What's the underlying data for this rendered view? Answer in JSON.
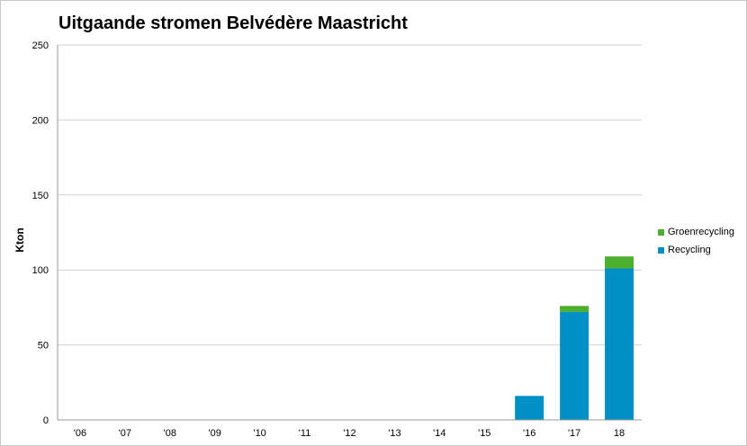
{
  "chart_data": {
    "type": "bar",
    "stacked": true,
    "title": "Uitgaande stromen Belvédère Maastricht",
    "ylabel": "Kton",
    "xlabel": "",
    "ylim": [
      0,
      250
    ],
    "yticks": [
      0,
      50,
      100,
      150,
      200,
      250
    ],
    "grid": true,
    "legend_position": "right",
    "categories": [
      "'06",
      "'07",
      "'08",
      "'09",
      "'10",
      "'11",
      "'12",
      "'13",
      "'14",
      "'15",
      "'16",
      "'17",
      "18"
    ],
    "series": [
      {
        "name": "Recycling",
        "color": "#0090c6",
        "values": [
          0,
          0,
          0,
          0,
          0,
          0,
          0,
          0,
          0,
          0,
          16,
          72,
          101
        ]
      },
      {
        "name": "Groenrecycling",
        "color": "#4caf2e",
        "values": [
          0,
          0,
          0,
          0,
          0,
          0,
          0,
          0,
          0,
          0,
          0,
          4,
          8
        ]
      }
    ],
    "legend_order": [
      "Groenrecycling",
      "Recycling"
    ]
  }
}
